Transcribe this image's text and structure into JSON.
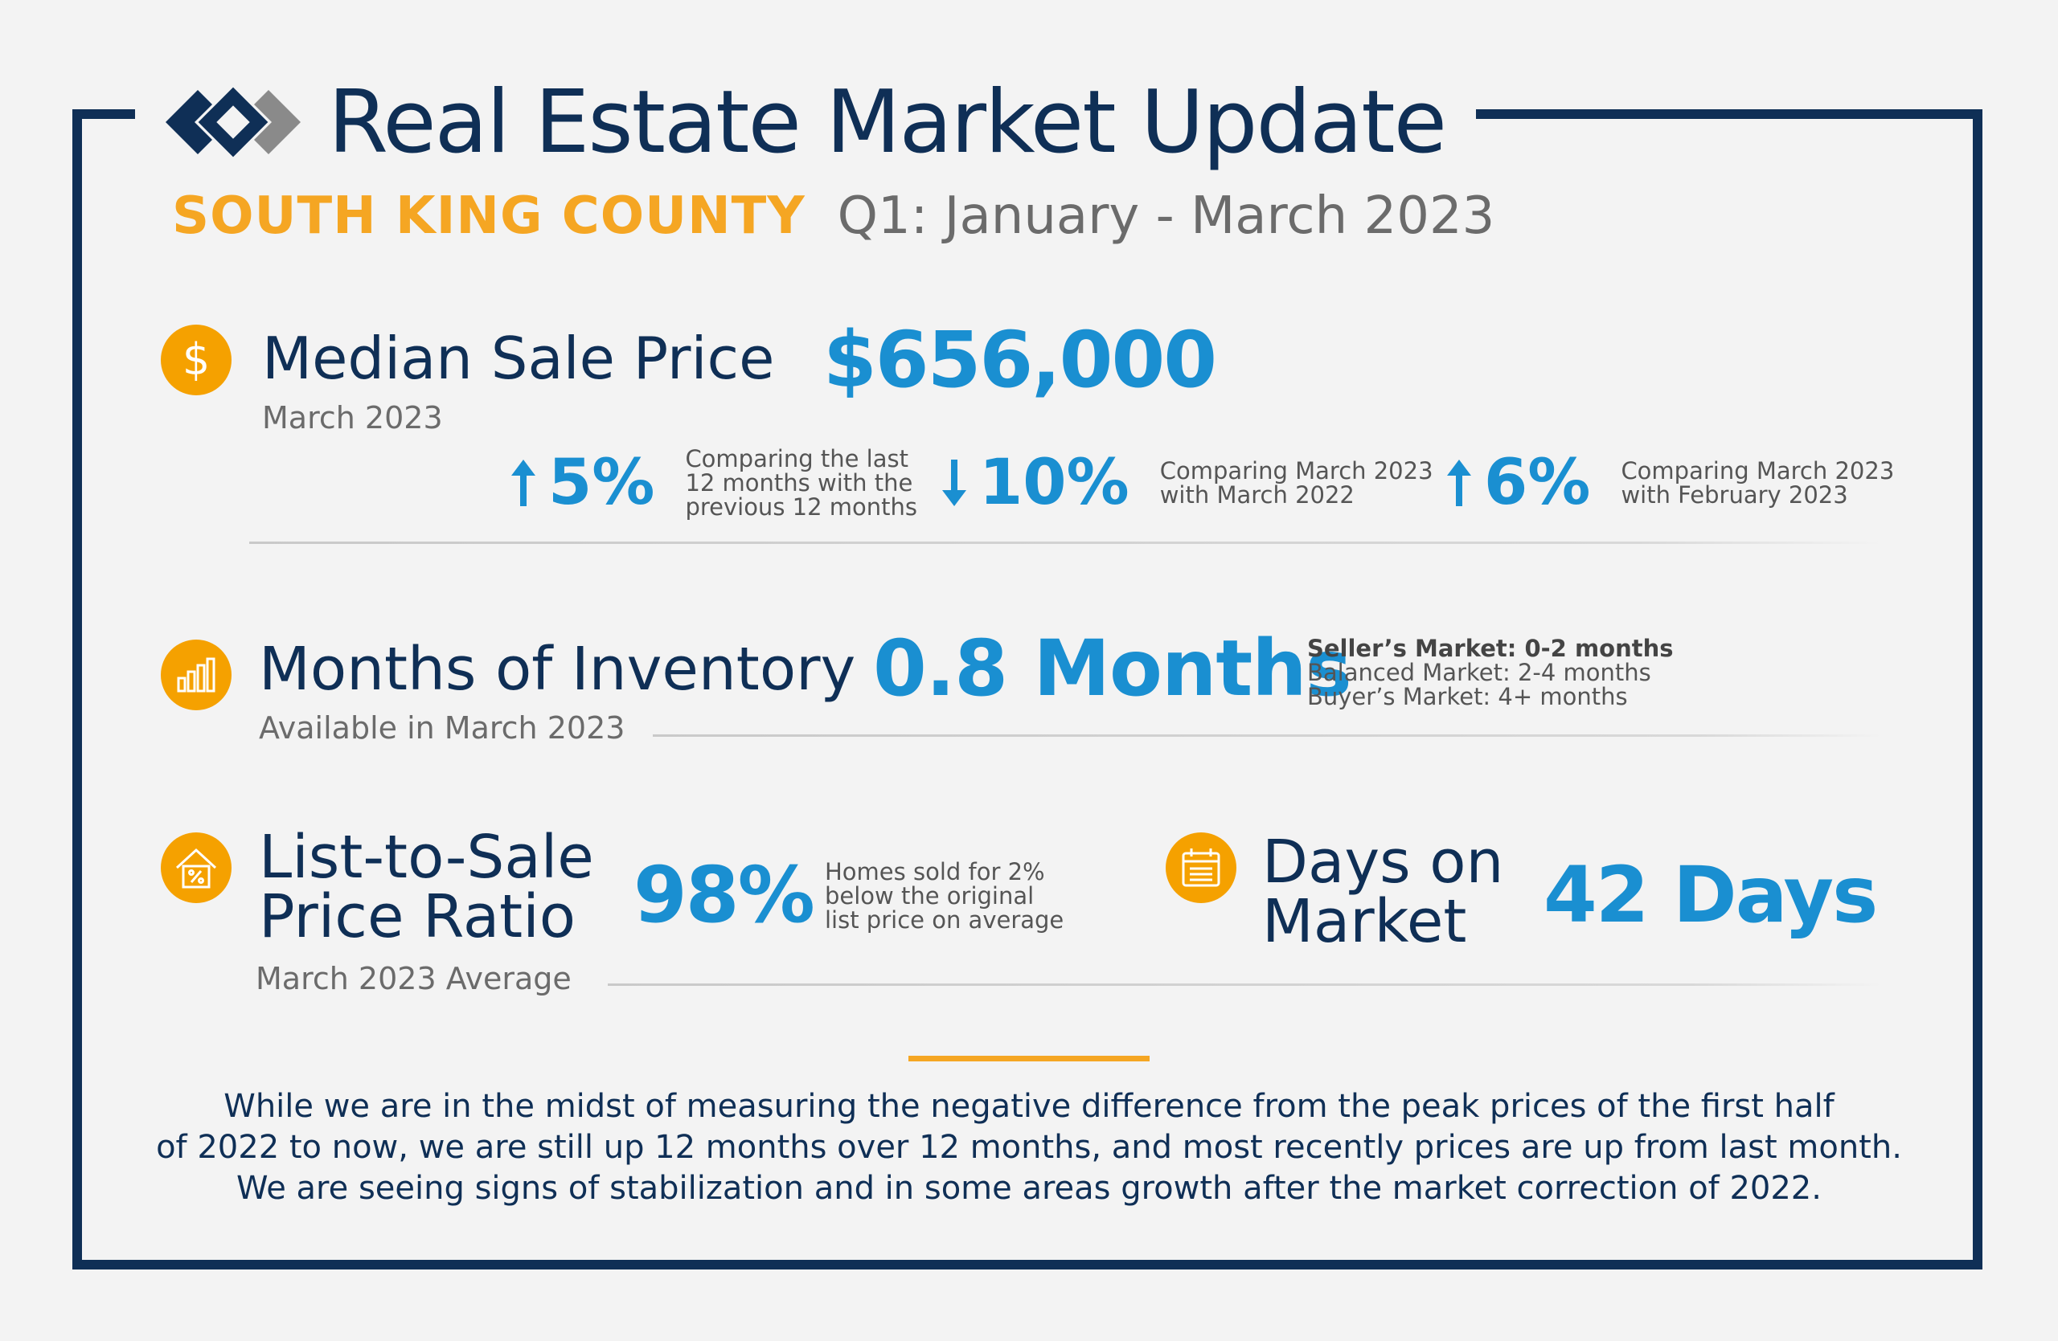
{
  "header": {
    "title": "Real Estate Market Update",
    "county": "SOUTH KING COUNTY",
    "period": "Q1: January - March 2023",
    "logo_icon": "windermere-w-logo-icon"
  },
  "colors": {
    "navy": "#0f2f56",
    "blue": "#1a8fd1",
    "orange": "#f5a623",
    "gray": "#6b6b6b"
  },
  "median": {
    "label": "Median Sale Price",
    "sublabel": "March 2023",
    "value": "$656,000",
    "icon": "dollar-icon",
    "stats": [
      {
        "direction": "up",
        "pct": "5%",
        "desc": [
          "Comparing the last",
          "12 months with the",
          "previous 12 months"
        ]
      },
      {
        "direction": "down",
        "pct": "10%",
        "desc": [
          "Comparing March 2023",
          "with March 2022"
        ]
      },
      {
        "direction": "up",
        "pct": "6%",
        "desc": [
          "Comparing March 2023",
          "with February 2023"
        ]
      }
    ]
  },
  "inventory": {
    "label": "Months of Inventory",
    "sublabel": "Available in March 2023",
    "value": "0.8 Months",
    "icon": "bar-chart-icon",
    "legend": [
      "Seller’s Market: 0-2 months",
      "Balanced Market: 2-4 months",
      "Buyer’s Market: 4+ months"
    ]
  },
  "ratio": {
    "label": [
      "List-to-Sale",
      "Price Ratio"
    ],
    "sublabel": "March 2023 Average",
    "value": "98%",
    "icon": "house-percent-icon",
    "note": [
      "Homes sold for 2%",
      "below the original",
      "list price on average"
    ]
  },
  "days": {
    "label": [
      "Days on",
      "Market"
    ],
    "value": "42 Days",
    "icon": "calendar-icon"
  },
  "closing": [
    "While we are in the midst of measuring the negative difference from the peak prices of the first half",
    "of 2022 to now, we are still up 12 months over 12 months, and most recently prices are up from last month.",
    "We are seeing signs of stabilization and in some areas growth after the market correction of 2022."
  ]
}
